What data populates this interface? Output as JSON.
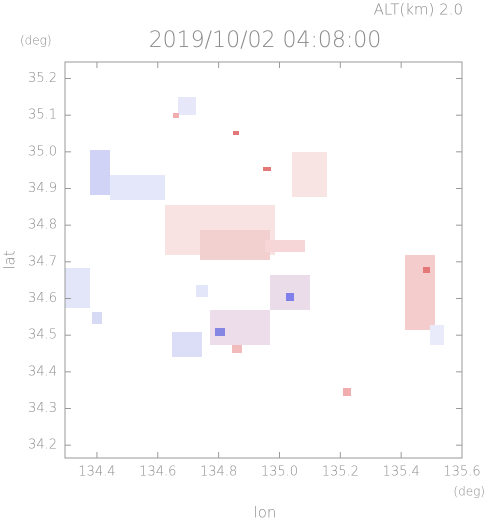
{
  "chart_data": {
    "type": "map",
    "title": "2019/10/02 04:08:00",
    "subtitle": "ALT(km) 2.0",
    "x_label": "lon",
    "y_label": "lat",
    "x_unit": "(deg)",
    "y_unit": "(deg)",
    "xlim": [
      134.295,
      135.6
    ],
    "ylim": [
      34.165,
      35.245
    ],
    "xticks": [
      134.4,
      134.6,
      134.8,
      {
        "value": 135,
        "label": "135.0"
      },
      135.2,
      135.4,
      135.6
    ],
    "yticks": [
      34.2,
      34.3,
      34.4,
      34.5,
      34.6,
      34.7,
      34.8,
      34.9,
      {
        "value": 35,
        "label": "35.0"
      },
      35.1,
      35.2
    ]
  }
}
